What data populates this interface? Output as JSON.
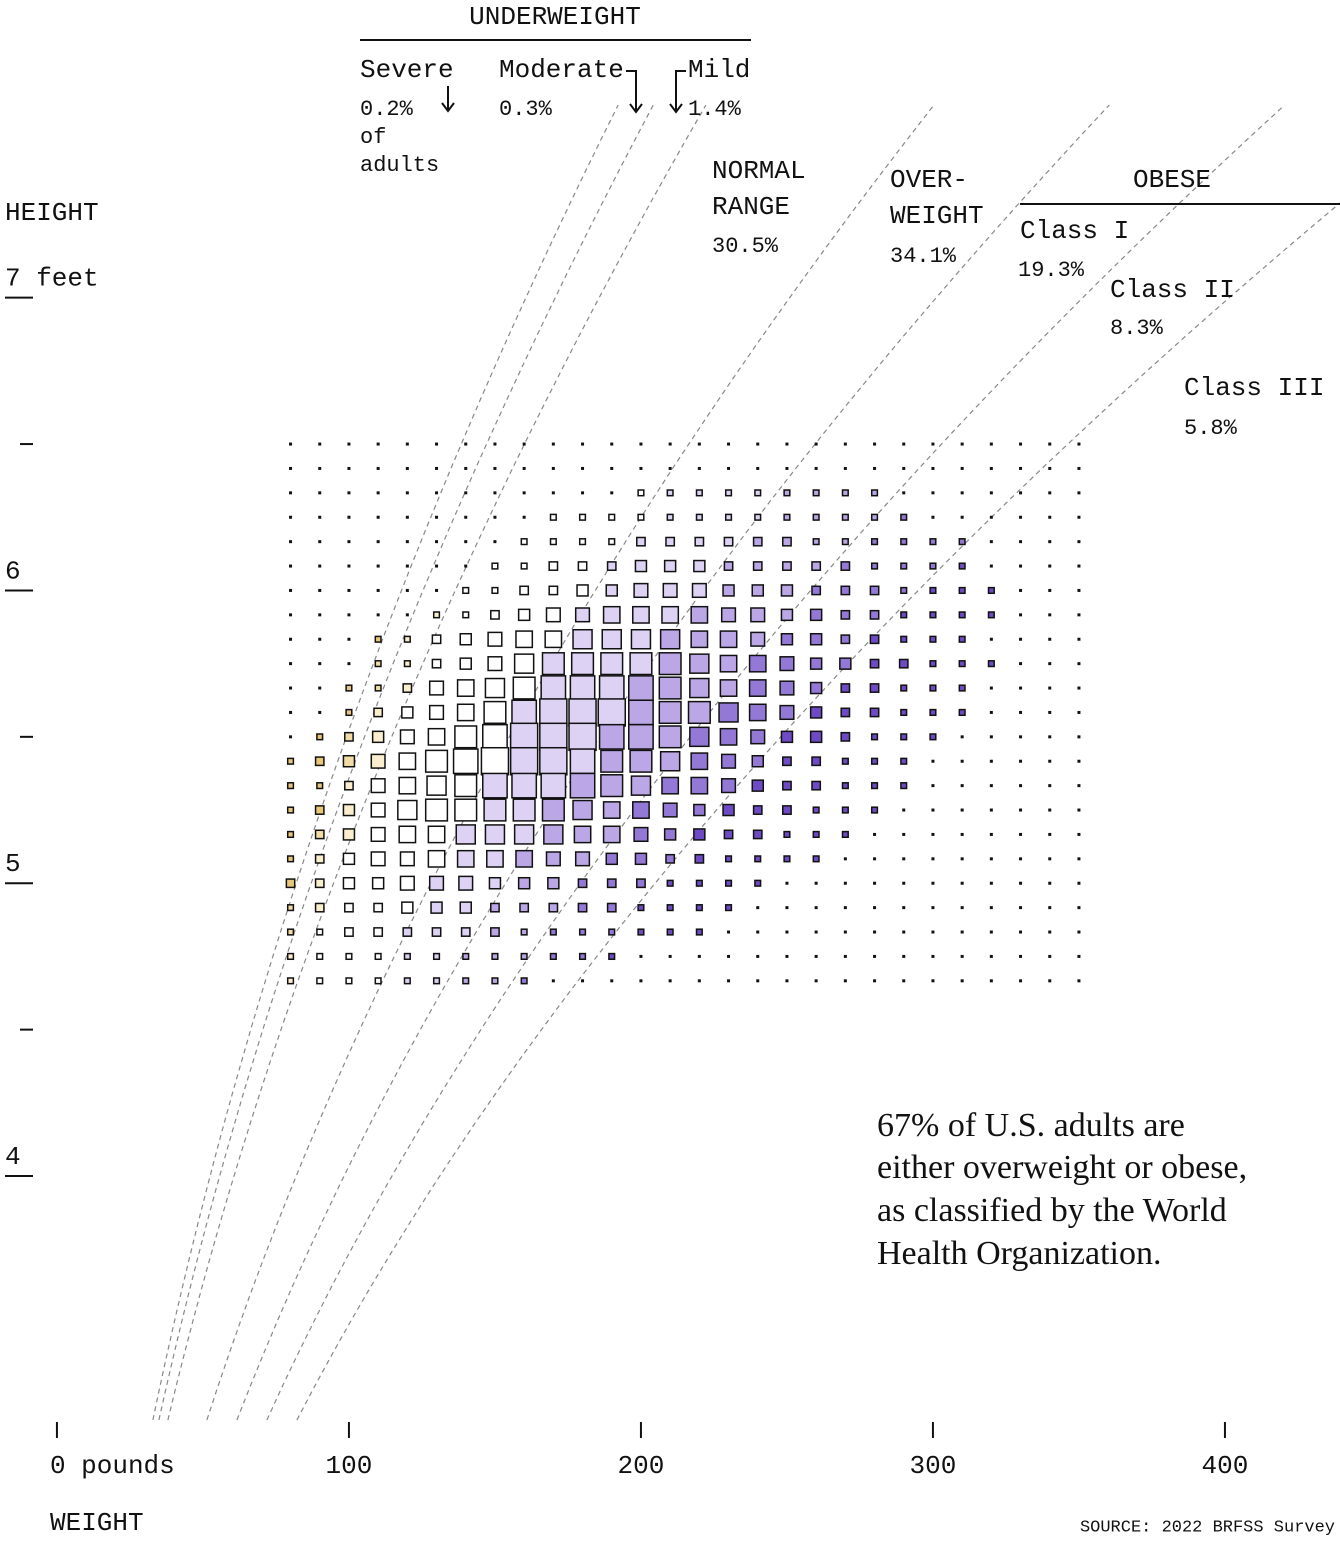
{
  "chart_data": {
    "type": "heatmap",
    "y_label": "HEIGHT",
    "x_label": "WEIGHT",
    "source": "SOURCE: 2022 BRFSS Survey",
    "note": [
      "67% of U.S. adults are",
      "either overweight or obese,",
      "as classified by the World",
      "Health Organization."
    ],
    "xlim": [
      -19.5,
      439.4
    ],
    "xticks": [
      {
        "value": 0,
        "label": "0 pounds"
      },
      100,
      200,
      300,
      400
    ],
    "ylim": [
      38,
      96.2
    ],
    "yticks": [
      {
        "value": 84,
        "label": "7 feet"
      },
      {
        "value": 72,
        "label": "6"
      },
      {
        "value": 60,
        "label": "5"
      },
      {
        "value": 48,
        "label": "4"
      }
    ],
    "yticks_minor": [
      78,
      66,
      54
    ],
    "groups": [
      "UNDERWEIGHT",
      "OBESE"
    ],
    "classes": [
      {
        "label": [
          "Severe"
        ],
        "share": "0.2%",
        "share_note": [
          "of",
          "adults"
        ],
        "bmi_max": 16,
        "color": "#e8c77a"
      },
      {
        "label": [
          "Moderate"
        ],
        "share": "0.3%",
        "bmi_max": 17,
        "color": "#f2dca6"
      },
      {
        "label": [
          "Mild"
        ],
        "share": "1.4%",
        "bmi_max": 18.5,
        "color": "#faeecf"
      },
      {
        "label": [
          "NORMAL",
          "RANGE"
        ],
        "share": "30.5%",
        "bmi_max": 25,
        "color": "#ffffff"
      },
      {
        "label": [
          "OVER-",
          "WEIGHT"
        ],
        "share": "34.1%",
        "bmi_max": 30,
        "color": "#ddd2f3"
      },
      {
        "label": [
          "Class I"
        ],
        "share": "19.3%",
        "bmi_max": 35,
        "color": "#bba6e6"
      },
      {
        "label": [
          "Class II"
        ],
        "share": "8.3%",
        "bmi_max": 40,
        "color": "#9478d6"
      },
      {
        "label": [
          "Class III"
        ],
        "share": "5.8%",
        "bmi_max": null,
        "color": "#6e4bc4"
      }
    ],
    "x": [
      80,
      90,
      100,
      110,
      120,
      130,
      140,
      150,
      160,
      170,
      180,
      190,
      200,
      210,
      220,
      230,
      240,
      250,
      260,
      270,
      280,
      290,
      300,
      310,
      320,
      330,
      340,
      350
    ],
    "y": [
      78,
      77,
      76,
      75,
      74,
      73,
      72,
      71,
      70,
      69,
      68,
      67,
      66,
      65,
      64,
      63,
      62,
      61,
      60,
      59,
      58,
      57,
      56
    ],
    "values": [
      [
        0,
        0,
        0,
        0,
        0,
        0,
        0,
        0,
        0,
        0,
        0,
        0,
        0,
        0,
        0,
        0,
        0,
        0,
        0,
        0,
        0,
        0,
        0,
        0,
        0,
        0,
        0,
        0
      ],
      [
        0,
        0,
        0,
        0,
        0,
        0,
        0,
        0,
        0,
        0,
        0,
        0,
        0,
        0,
        0,
        0,
        0,
        0,
        0,
        0,
        0,
        0,
        0,
        0,
        0,
        0,
        0,
        0
      ],
      [
        0,
        0,
        0,
        0,
        0,
        0,
        0,
        0,
        0,
        0,
        0,
        0,
        1,
        1,
        1,
        1,
        1,
        1,
        1,
        1,
        1,
        0,
        0,
        0,
        0,
        0,
        0,
        0
      ],
      [
        0,
        0,
        0,
        0,
        0,
        0,
        0,
        0,
        0,
        1,
        1,
        1,
        1,
        1,
        1,
        1,
        1,
        1,
        1,
        1,
        1,
        1,
        0,
        0,
        0,
        0,
        0,
        0
      ],
      [
        0,
        0,
        0,
        0,
        0,
        0,
        0,
        0,
        1,
        1,
        1,
        1,
        2,
        2,
        2,
        2,
        2,
        2,
        1,
        1,
        1,
        1,
        1,
        1,
        0,
        0,
        0,
        0
      ],
      [
        0,
        0,
        0,
        0,
        0,
        0,
        0,
        1,
        1,
        2,
        2,
        2,
        3,
        3,
        3,
        2,
        2,
        2,
        2,
        2,
        1,
        1,
        1,
        1,
        0,
        0,
        0,
        0
      ],
      [
        0,
        0,
        0,
        0,
        0,
        0,
        1,
        1,
        2,
        2,
        3,
        3,
        4,
        4,
        4,
        3,
        3,
        3,
        2,
        2,
        2,
        1,
        1,
        1,
        1,
        0,
        0,
        0
      ],
      [
        0,
        0,
        0,
        0,
        0,
        1,
        1,
        2,
        3,
        4,
        4,
        5,
        5,
        5,
        5,
        4,
        4,
        3,
        3,
        2,
        2,
        1,
        1,
        1,
        1,
        0,
        0,
        0
      ],
      [
        0,
        0,
        0,
        1,
        1,
        2,
        3,
        4,
        5,
        5,
        6,
        6,
        6,
        6,
        5,
        5,
        4,
        3,
        3,
        2,
        2,
        1,
        1,
        1,
        0,
        0,
        0,
        0
      ],
      [
        0,
        0,
        0,
        1,
        1,
        2,
        3,
        4,
        6,
        7,
        7,
        7,
        7,
        7,
        6,
        5,
        5,
        4,
        3,
        3,
        2,
        2,
        1,
        1,
        1,
        0,
        0,
        0
      ],
      [
        0,
        0,
        1,
        1,
        2,
        4,
        5,
        6,
        7,
        8,
        8,
        8,
        8,
        7,
        6,
        5,
        5,
        4,
        3,
        2,
        2,
        1,
        1,
        1,
        0,
        0,
        0,
        0
      ],
      [
        0,
        0,
        1,
        2,
        3,
        4,
        5,
        7,
        8,
        9,
        9,
        9,
        8,
        7,
        7,
        6,
        5,
        4,
        3,
        2,
        2,
        1,
        1,
        1,
        0,
        0,
        0,
        0
      ],
      [
        0,
        1,
        2,
        3,
        4,
        5,
        7,
        8,
        9,
        9,
        9,
        8,
        8,
        7,
        6,
        5,
        4,
        3,
        3,
        2,
        1,
        1,
        1,
        0,
        0,
        0,
        0,
        0
      ],
      [
        1,
        2,
        3,
        4,
        5,
        7,
        8,
        9,
        9,
        9,
        8,
        7,
        7,
        6,
        5,
        4,
        3,
        2,
        2,
        1,
        1,
        1,
        0,
        0,
        0,
        0,
        0,
        0
      ],
      [
        1,
        1,
        2,
        4,
        5,
        6,
        7,
        8,
        8,
        8,
        8,
        7,
        6,
        5,
        5,
        4,
        3,
        2,
        2,
        1,
        1,
        1,
        0,
        0,
        0,
        0,
        0,
        0
      ],
      [
        1,
        2,
        3,
        4,
        6,
        7,
        7,
        7,
        7,
        7,
        6,
        5,
        5,
        4,
        3,
        3,
        2,
        2,
        1,
        1,
        1,
        0,
        0,
        0,
        0,
        0,
        0,
        0
      ],
      [
        1,
        2,
        3,
        4,
        5,
        5,
        6,
        6,
        6,
        6,
        5,
        5,
        4,
        3,
        3,
        2,
        2,
        1,
        1,
        1,
        0,
        0,
        0,
        0,
        0,
        0,
        0,
        0
      ],
      [
        1,
        2,
        3,
        4,
        4,
        5,
        5,
        5,
        5,
        4,
        4,
        3,
        3,
        2,
        2,
        1,
        1,
        1,
        1,
        0,
        0,
        0,
        0,
        0,
        0,
        0,
        0,
        0
      ],
      [
        2,
        2,
        3,
        3,
        4,
        4,
        4,
        3,
        3,
        3,
        2,
        2,
        2,
        1,
        1,
        1,
        1,
        0,
        0,
        0,
        0,
        0,
        0,
        0,
        0,
        0,
        0,
        0
      ],
      [
        1,
        2,
        2,
        2,
        3,
        3,
        3,
        2,
        2,
        2,
        2,
        2,
        1,
        1,
        1,
        1,
        0,
        0,
        0,
        0,
        0,
        0,
        0,
        0,
        0,
        0,
        0,
        0
      ],
      [
        1,
        1,
        2,
        2,
        2,
        2,
        2,
        2,
        1,
        1,
        1,
        1,
        1,
        1,
        1,
        0,
        0,
        0,
        0,
        0,
        0,
        0,
        0,
        0,
        0,
        0,
        0,
        0
      ],
      [
        1,
        1,
        1,
        1,
        1,
        1,
        1,
        1,
        1,
        1,
        1,
        1,
        0,
        0,
        0,
        0,
        0,
        0,
        0,
        0,
        0,
        0,
        0,
        0,
        0,
        0,
        0,
        0
      ],
      [
        1,
        1,
        1,
        1,
        1,
        1,
        1,
        1,
        1,
        0,
        0,
        0,
        0,
        0,
        0,
        0,
        0,
        0,
        0,
        0,
        0,
        0,
        0,
        0,
        0,
        0,
        0,
        0
      ]
    ]
  }
}
